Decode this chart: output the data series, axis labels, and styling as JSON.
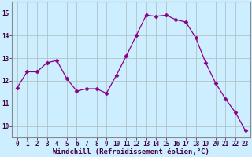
{
  "x": [
    0,
    1,
    2,
    3,
    4,
    5,
    6,
    7,
    8,
    9,
    10,
    11,
    12,
    13,
    14,
    15,
    16,
    17,
    18,
    19,
    20,
    21,
    22,
    23
  ],
  "y": [
    11.7,
    12.4,
    12.4,
    12.8,
    12.9,
    12.1,
    11.55,
    11.65,
    11.65,
    11.45,
    12.25,
    13.1,
    14.0,
    14.9,
    14.85,
    14.9,
    14.7,
    14.6,
    13.9,
    12.8,
    11.9,
    11.2,
    10.6,
    9.8
  ],
  "line_color": "#880088",
  "marker": "D",
  "marker_size": 2.5,
  "bg_color": "#cceeff",
  "grid_color": "#aabbbb",
  "xlabel": "Windchill (Refroidissement éolien,°C)",
  "xlim": [
    -0.5,
    23.5
  ],
  "ylim": [
    9.5,
    15.5
  ],
  "yticks": [
    10,
    11,
    12,
    13,
    14,
    15
  ],
  "xticks": [
    0,
    1,
    2,
    3,
    4,
    5,
    6,
    7,
    8,
    9,
    10,
    11,
    12,
    13,
    14,
    15,
    16,
    17,
    18,
    19,
    20,
    21,
    22,
    23
  ],
  "xtick_labels": [
    "0",
    "1",
    "2",
    "3",
    "4",
    "5",
    "6",
    "7",
    "8",
    "9",
    "10",
    "11",
    "12",
    "13",
    "14",
    "15",
    "16",
    "17",
    "18",
    "19",
    "20",
    "21",
    "22",
    "23"
  ],
  "tick_fontsize": 5.5,
  "xlabel_fontsize": 6.5
}
